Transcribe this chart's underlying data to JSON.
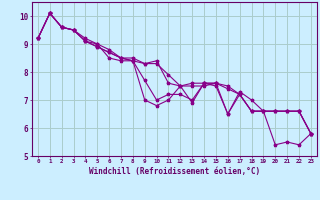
{
  "xlabel": "Windchill (Refroidissement éolien,°C)",
  "bg_color": "#cceeff",
  "grid_color": "#aacccc",
  "line_color": "#880088",
  "xlim": [
    -0.5,
    23.5
  ],
  "ylim": [
    5,
    10.5
  ],
  "xticks": [
    0,
    1,
    2,
    3,
    4,
    5,
    6,
    7,
    8,
    9,
    10,
    11,
    12,
    13,
    14,
    15,
    16,
    17,
    18,
    19,
    20,
    21,
    22,
    23
  ],
  "yticks": [
    5,
    6,
    7,
    8,
    9,
    10
  ],
  "lines": [
    [
      9.2,
      10.1,
      9.6,
      9.5,
      9.1,
      9.0,
      8.5,
      8.4,
      8.4,
      7.0,
      6.8,
      7.0,
      7.5,
      6.9,
      7.6,
      7.5,
      6.5,
      7.2,
      6.6,
      6.6,
      5.4,
      5.5,
      5.4,
      5.8
    ],
    [
      9.2,
      10.1,
      9.6,
      9.5,
      9.1,
      8.9,
      8.7,
      8.5,
      8.4,
      8.3,
      8.4,
      7.6,
      7.5,
      7.5,
      7.5,
      7.6,
      7.4,
      7.2,
      6.6,
      6.6,
      6.6,
      6.6,
      6.6,
      5.8
    ],
    [
      9.2,
      10.1,
      9.6,
      9.5,
      9.1,
      8.9,
      8.7,
      8.5,
      8.4,
      7.7,
      7.0,
      7.2,
      7.2,
      7.0,
      7.6,
      7.6,
      6.5,
      7.3,
      7.0,
      6.6,
      6.6,
      6.6,
      6.6,
      5.8
    ],
    [
      9.2,
      10.1,
      9.6,
      9.5,
      9.2,
      9.0,
      8.8,
      8.5,
      8.5,
      8.3,
      8.3,
      7.9,
      7.5,
      7.6,
      7.6,
      7.6,
      7.5,
      7.2,
      6.6,
      6.6,
      6.6,
      6.6,
      6.6,
      5.8
    ]
  ]
}
